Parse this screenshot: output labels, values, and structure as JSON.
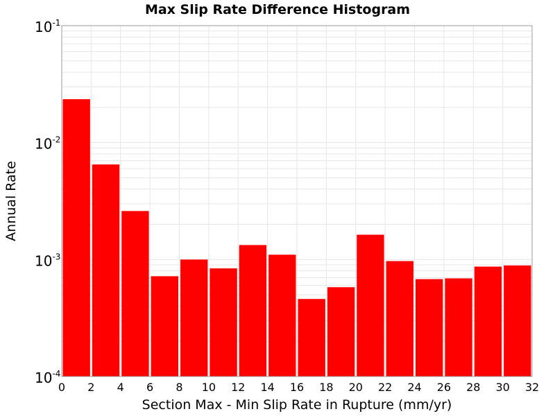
{
  "chart_data": {
    "type": "bar",
    "title": "Max Slip Rate Difference Histogram",
    "xlabel": "Section Max - Min Slip Rate in Rupture (mm/yr)",
    "ylabel": "Annual Rate",
    "xlim": [
      0,
      32
    ],
    "ylim": [
      0.0001,
      0.1
    ],
    "yscale": "log",
    "grid": true,
    "x_ticks": [
      "0",
      "2",
      "4",
      "6",
      "8",
      "10",
      "12",
      "14",
      "16",
      "18",
      "20",
      "22",
      "24",
      "26",
      "28",
      "30",
      "32"
    ],
    "y_ticks": [
      {
        "base": "10",
        "exp": "-4"
      },
      {
        "base": "10",
        "exp": "-3"
      },
      {
        "base": "10",
        "exp": "-2"
      },
      {
        "base": "10",
        "exp": "-1"
      }
    ],
    "bin_width": 2,
    "bins": [
      {
        "x": 1,
        "value": 0.0235
      },
      {
        "x": 3,
        "value": 0.0065
      },
      {
        "x": 5,
        "value": 0.0026
      },
      {
        "x": 7,
        "value": 0.00072
      },
      {
        "x": 9,
        "value": 0.001
      },
      {
        "x": 11,
        "value": 0.00084
      },
      {
        "x": 13,
        "value": 0.00133
      },
      {
        "x": 15,
        "value": 0.0011
      },
      {
        "x": 17,
        "value": 0.00046
      },
      {
        "x": 19,
        "value": 0.00058
      },
      {
        "x": 21,
        "value": 0.00163
      },
      {
        "x": 23,
        "value": 0.00097
      },
      {
        "x": 25,
        "value": 0.00068
      },
      {
        "x": 27,
        "value": 0.00069
      },
      {
        "x": 29,
        "value": 0.00087
      },
      {
        "x": 31,
        "value": 0.00089
      }
    ],
    "bar_color": "#ff0000",
    "grid_color": "#e6e6e6"
  }
}
